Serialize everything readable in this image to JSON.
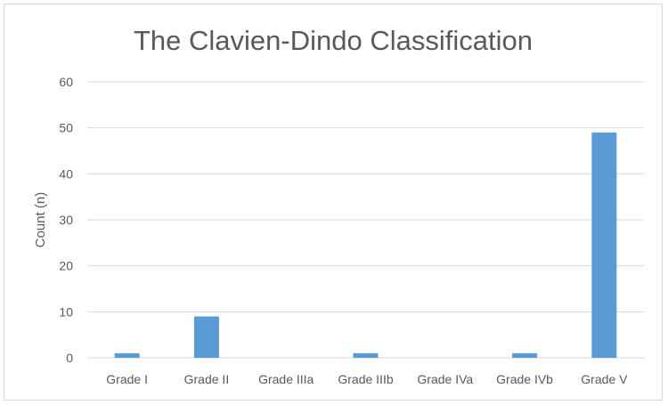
{
  "chart_data": {
    "type": "bar",
    "title": "The Clavien-Dindo Classification",
    "xlabel": "",
    "ylabel": "Count (n)",
    "categories": [
      "Grade I",
      "Grade II",
      "Grade IIIa",
      "Grade IIIb",
      "Grade IVa",
      "Grade IVb",
      "Grade V"
    ],
    "values": [
      1,
      9,
      0,
      1,
      0,
      1,
      49
    ],
    "ylim": [
      0,
      60
    ],
    "yticks": [
      0,
      10,
      20,
      30,
      40,
      50,
      60
    ],
    "grid": true,
    "legend": "none",
    "bar_color": "#5b9bd5",
    "grid_color": "#d9d9d9",
    "text_color": "#595959"
  }
}
